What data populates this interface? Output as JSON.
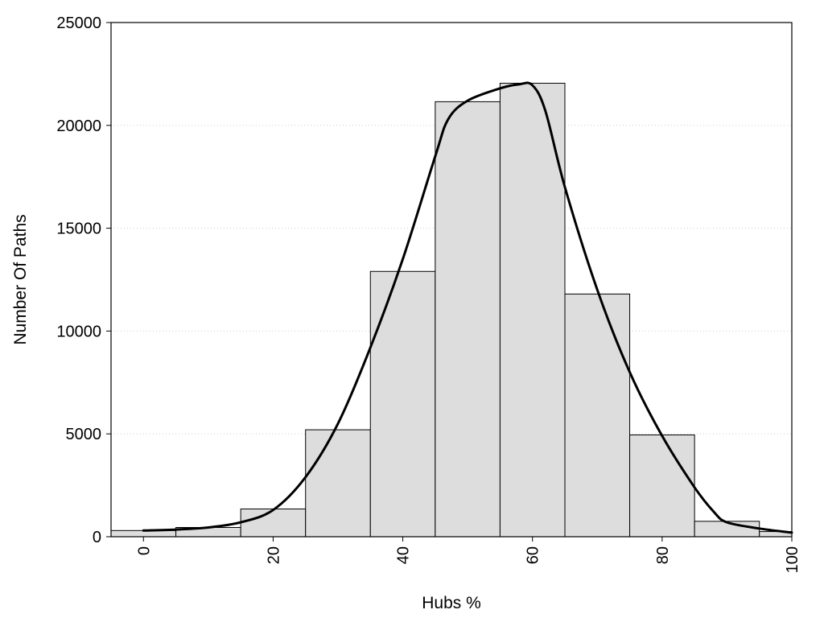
{
  "chart_data": {
    "type": "bar",
    "xlabel": "Hubs %",
    "ylabel": "Number Of Paths",
    "xlim": [
      -5,
      100
    ],
    "ylim": [
      0,
      25000
    ],
    "x_ticks": [
      0,
      20,
      40,
      60,
      80,
      100
    ],
    "y_ticks": [
      0,
      5000,
      10000,
      15000,
      20000,
      25000
    ],
    "grid": "horizontal dotted",
    "colors": {
      "bar_fill": "#dddddd",
      "bar_edge": "#000000",
      "curve": "#000000"
    },
    "bins": [
      {
        "x0": -5,
        "x1": 5,
        "value": 300
      },
      {
        "x0": 5,
        "x1": 15,
        "value": 450
      },
      {
        "x0": 15,
        "x1": 25,
        "value": 1350
      },
      {
        "x0": 25,
        "x1": 35,
        "value": 5200
      },
      {
        "x0": 35,
        "x1": 45,
        "value": 12900
      },
      {
        "x0": 45,
        "x1": 55,
        "value": 21150
      },
      {
        "x0": 55,
        "x1": 65,
        "value": 22050
      },
      {
        "x0": 65,
        "x1": 75,
        "value": 11800
      },
      {
        "x0": 75,
        "x1": 85,
        "value": 4950
      },
      {
        "x0": 85,
        "x1": 95,
        "value": 750
      },
      {
        "x0": 95,
        "x1": 100,
        "value": 250
      }
    ],
    "curve": {
      "x": [
        0,
        5,
        10,
        15,
        20,
        25,
        30,
        35,
        40,
        45,
        47,
        50,
        55,
        58,
        60,
        62,
        65,
        70,
        75,
        80,
        85,
        88,
        90,
        95,
        100
      ],
      "y": [
        300,
        350,
        450,
        700,
        1300,
        2900,
        5500,
        9200,
        13500,
        18500,
        20300,
        21200,
        21800,
        22000,
        21950,
        20700,
        17000,
        12000,
        8000,
        4900,
        2400,
        1200,
        700,
        400,
        200
      ]
    }
  }
}
